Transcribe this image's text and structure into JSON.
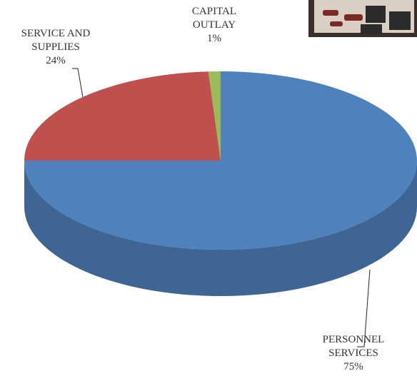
{
  "chart_data": {
    "type": "pie3d",
    "categories": [
      "PERSONNEL SERVICES",
      "SERVICE AND SUPPLIES",
      "CAPITAL OUTLAY"
    ],
    "values": [
      75,
      24,
      1
    ],
    "value_labels": [
      "75%",
      "24%",
      "1%"
    ],
    "colors": [
      "#4f81bd",
      "#c0504d",
      "#9bbb59"
    ]
  }
}
